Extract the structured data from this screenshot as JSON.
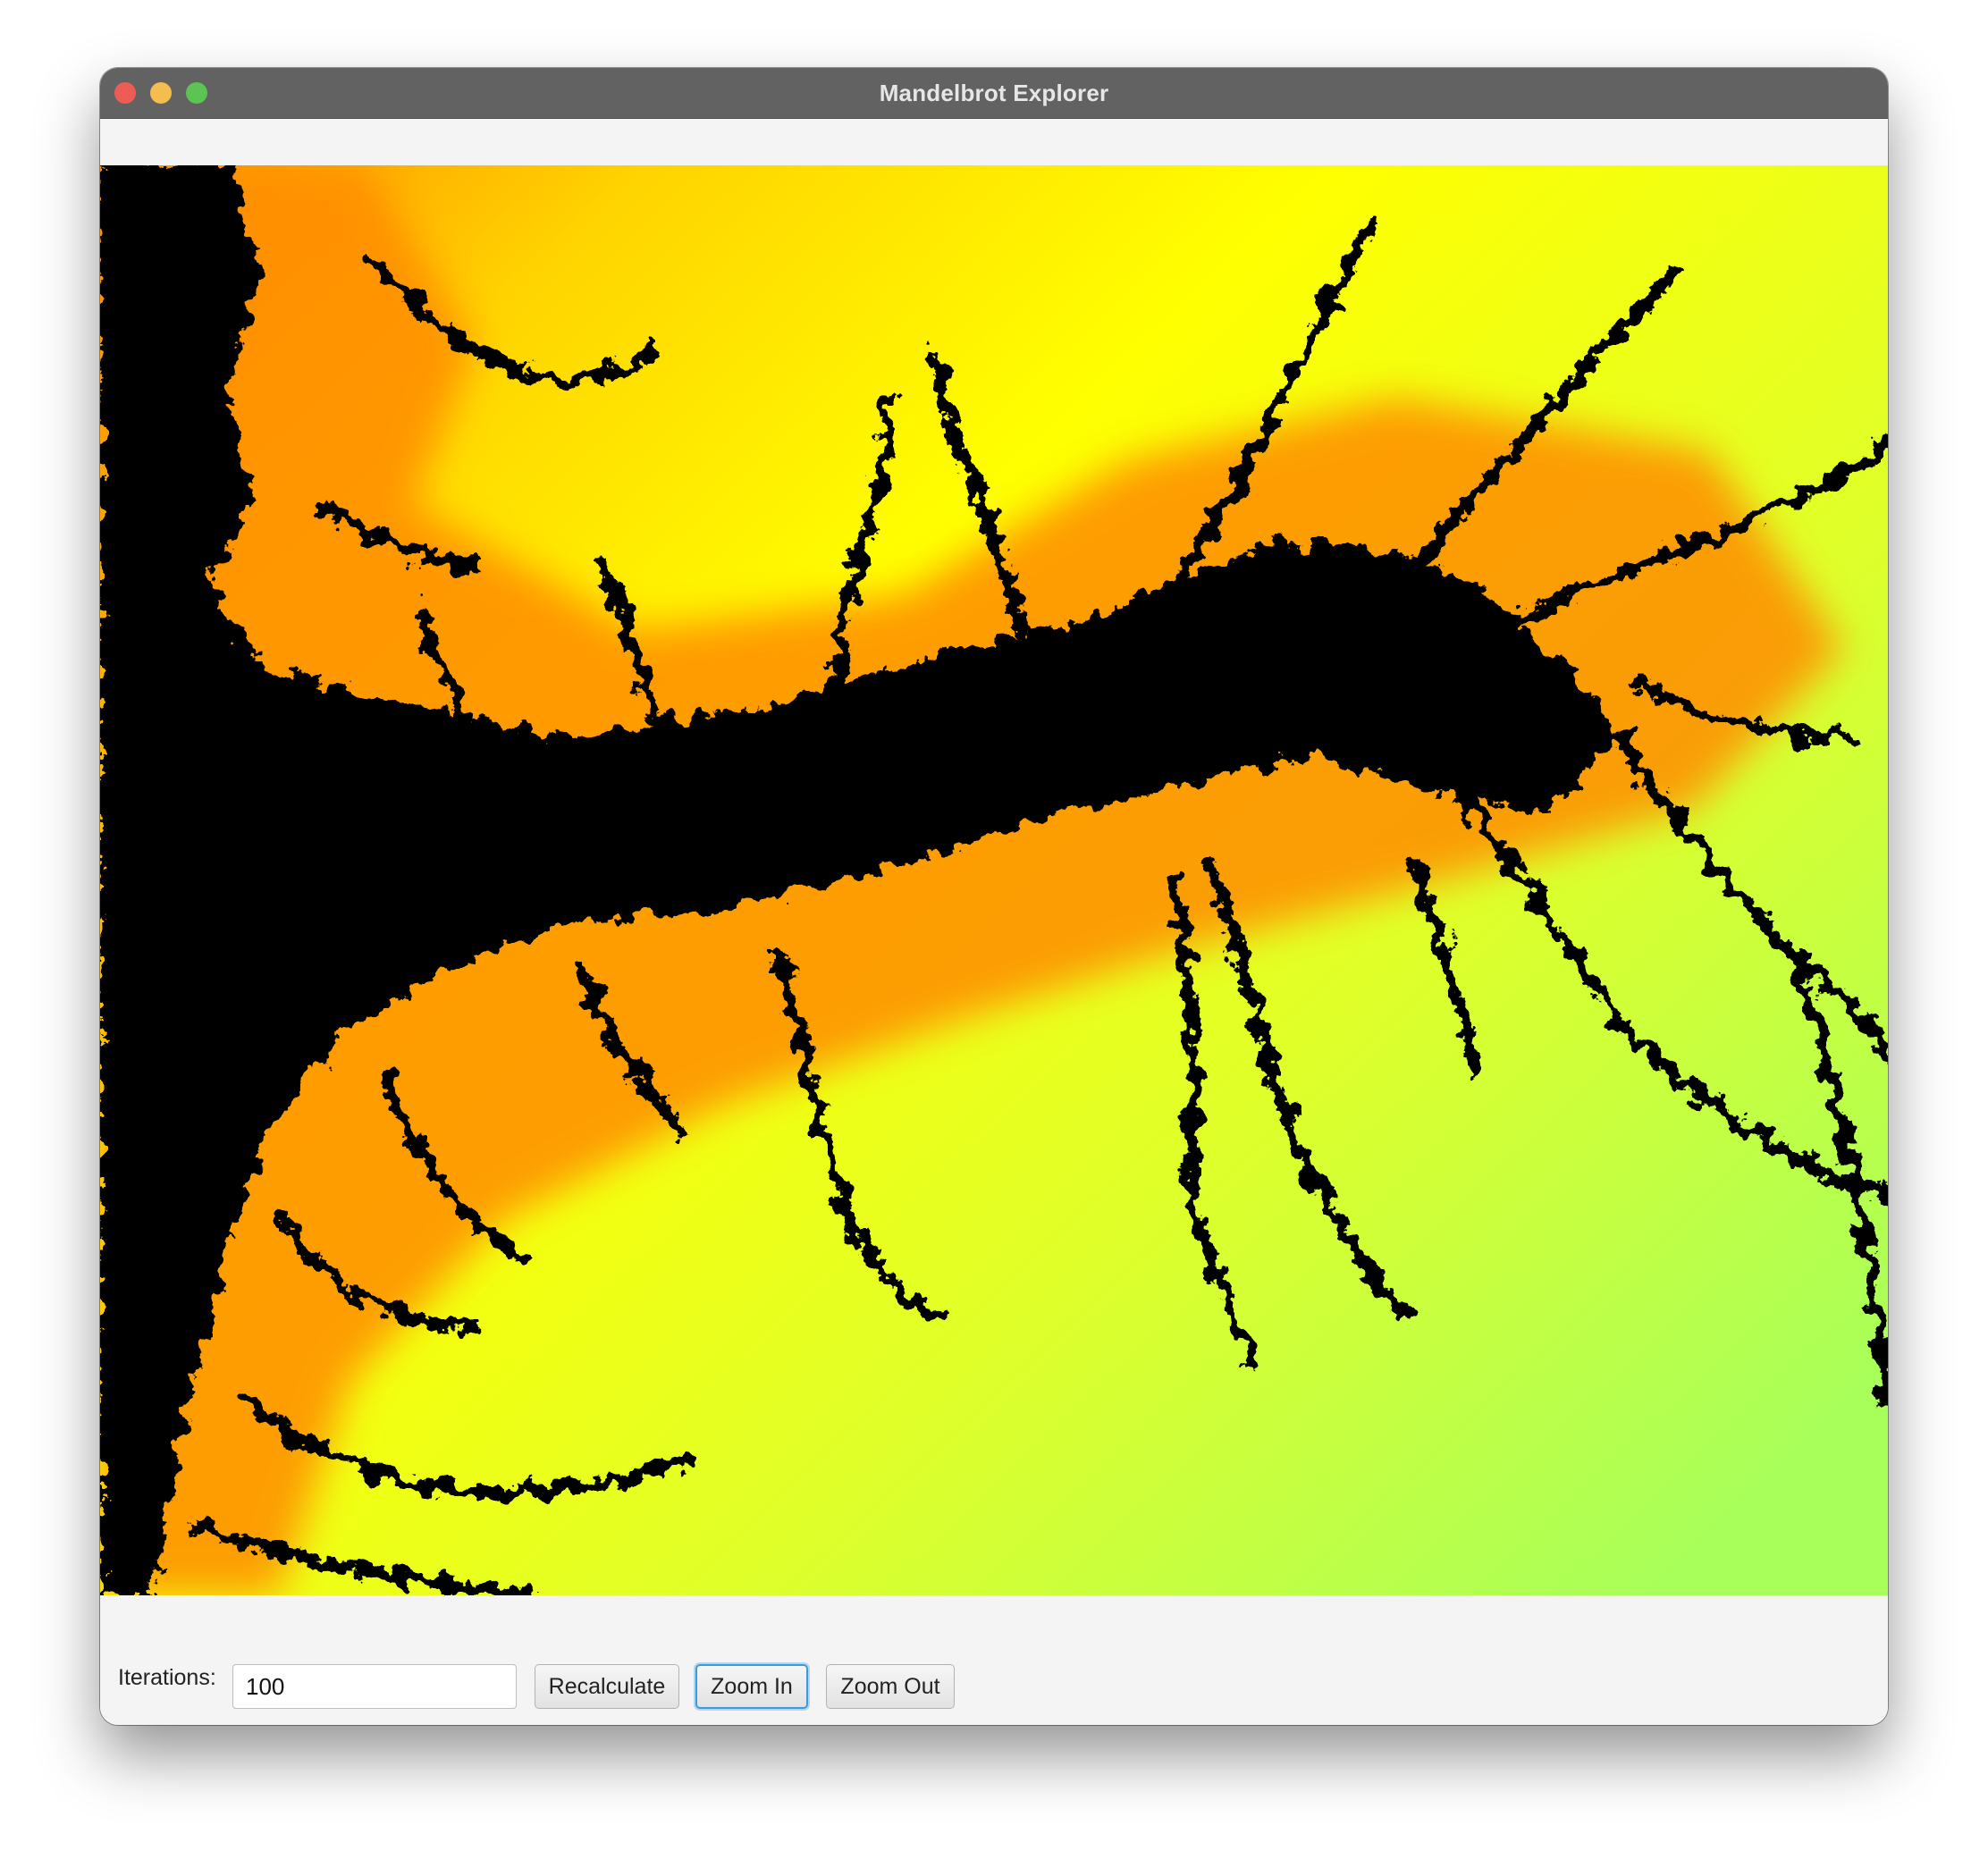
{
  "window": {
    "title": "Mandelbrot Explorer"
  },
  "fractal": {
    "palette": [
      "#000000",
      "#ff2a1a",
      "#ff8c00",
      "#ffd400",
      "#ffff00",
      "#dfff2a",
      "#a8ff5a"
    ]
  },
  "controls": {
    "iterations_label": "Iterations:",
    "iterations_value": "100",
    "recalculate_label": "Recalculate",
    "zoom_in_label": "Zoom In",
    "zoom_out_label": "Zoom Out"
  }
}
